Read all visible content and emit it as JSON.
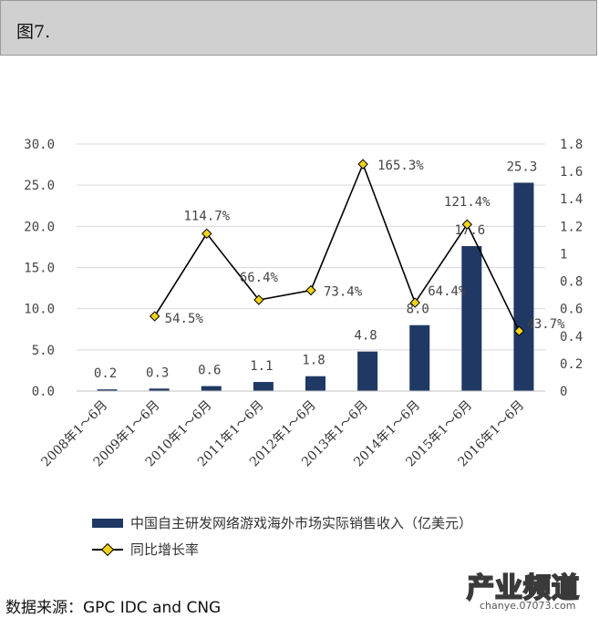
{
  "header": {
    "title": "图7."
  },
  "chart_data": {
    "type": "bar",
    "categories": [
      "2008年1～6月",
      "2009年1～6月",
      "2010年1～6月",
      "2011年1～6月",
      "2012年1～6月",
      "2013年1～6月",
      "2014年1～6月",
      "2015年1～6月",
      "2016年1～6月"
    ],
    "series": [
      {
        "name": "中国自主研发网络游戏海外市场实际销售收入（亿美元）",
        "type": "bar",
        "axis": "left",
        "values": [
          0.2,
          0.3,
          0.6,
          1.1,
          1.8,
          4.8,
          8.0,
          17.6,
          25.3
        ],
        "labels": [
          "0.2",
          "0.3",
          "0.6",
          "1.1",
          "1.8",
          "4.8",
          "8.0",
          "17.6",
          "25.3"
        ]
      },
      {
        "name": "同比增长率",
        "type": "line",
        "axis": "right",
        "x": [
          "2009年1～6月",
          "2010年1～6月",
          "2011年1～6月",
          "2012年1～6月",
          "2013年1～6月",
          "2014年1～6月",
          "2015年1～6月",
          "2016年1～6月"
        ],
        "values": [
          0.545,
          1.147,
          0.664,
          0.734,
          1.653,
          0.644,
          1.214,
          0.437
        ],
        "labels": [
          "54.5%",
          "114.7%",
          "66.4%",
          "73.4%",
          "165.3%",
          "64.4%",
          "121.4%",
          "43.7%"
        ]
      }
    ],
    "ylim": [
      0,
      30
    ],
    "y_ticks": [
      "0.0",
      "5.0",
      "10.0",
      "15.0",
      "20.0",
      "25.0",
      "30.0"
    ],
    "y2lim": [
      0,
      1.8
    ],
    "y2_ticks": [
      "0",
      "0.2",
      "0.4",
      "0.6",
      "0.8",
      "1",
      "1.2",
      "1.4",
      "1.6",
      "1.8"
    ],
    "grid": true,
    "legend_position": "bottom",
    "colors": {
      "bar": "#1f3864",
      "line": "#000000",
      "marker": "#f2d21b",
      "grid": "#d9d9d9"
    }
  },
  "source": "数据来源：GPC IDC and CNG",
  "watermark": {
    "text": "产业频道",
    "sub": "chanye.07073.com"
  }
}
